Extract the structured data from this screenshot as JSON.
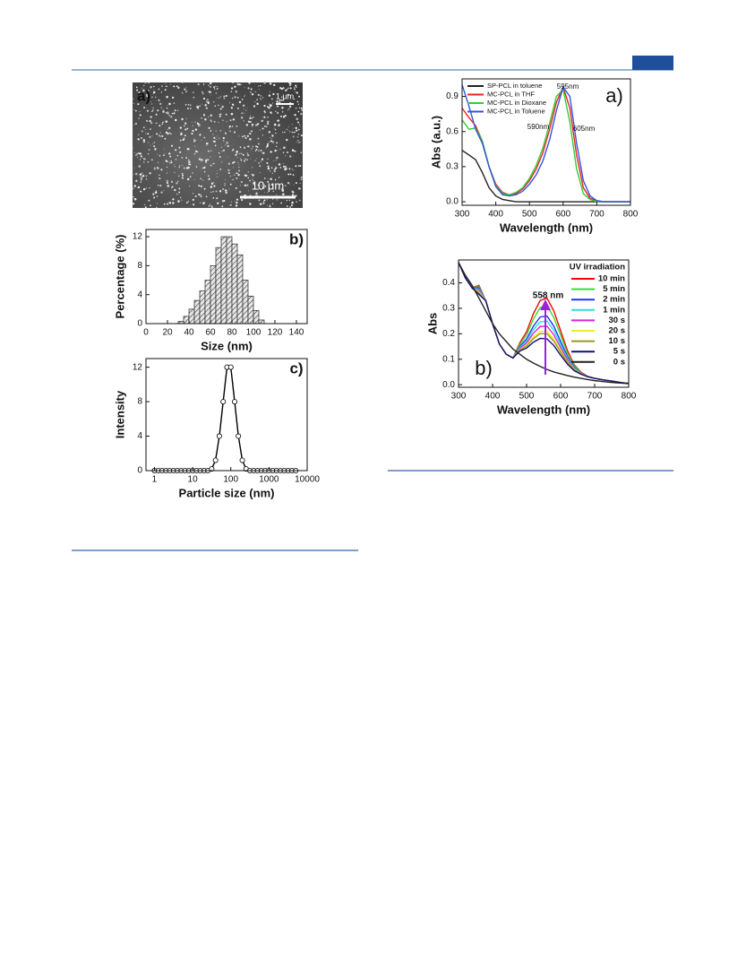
{
  "sem_image": {
    "panel_label": "a)",
    "inset_scale": "1 μm",
    "scale_bar": "10 μm"
  },
  "chart_data": [
    {
      "type": "histogram",
      "panel_label": "b)",
      "xlabel": "Size (nm)",
      "ylabel": "Percentage (%)",
      "bins": [
        30,
        35,
        40,
        45,
        50,
        55,
        60,
        65,
        70,
        75,
        80,
        85,
        90,
        95,
        100,
        105,
        110
      ],
      "values": [
        0.3,
        1,
        2,
        3.2,
        4.5,
        6,
        8,
        10.5,
        12,
        12,
        11,
        9.5,
        6,
        3.8,
        1.8,
        0.5
      ],
      "color": "#dddddd",
      "xlim": [
        0,
        150
      ],
      "xticks": [
        0,
        20,
        40,
        60,
        80,
        100,
        120,
        140
      ],
      "ylim": [
        0,
        13
      ],
      "yticks": [
        0,
        4,
        8,
        12
      ]
    },
    {
      "type": "line",
      "panel_label": "c)",
      "xlabel": "Particle size (nm)",
      "ylabel": "Intensity",
      "log_x": true,
      "marker": "circle",
      "color": "#000000",
      "x": [
        1,
        1.26,
        1.58,
        2,
        2.51,
        3.16,
        3.98,
        5.01,
        6.31,
        7.94,
        10,
        12.6,
        15.8,
        20,
        25.1,
        31.6,
        39.8,
        50.1,
        63.1,
        79.4,
        100,
        126,
        158,
        200,
        251,
        316,
        398,
        501,
        631,
        794,
        1000,
        1260,
        1580,
        2000,
        2510,
        3160,
        3980,
        5010
      ],
      "values": [
        0,
        0,
        0,
        0,
        0,
        0,
        0,
        0,
        0,
        0,
        0,
        0,
        0,
        0,
        0,
        0.2,
        1.2,
        4,
        8,
        12,
        12,
        8,
        4,
        1.2,
        0.2,
        0,
        0,
        0,
        0,
        0,
        0,
        0,
        0,
        0,
        0,
        0,
        0,
        0
      ],
      "xlim": [
        0.6,
        10000
      ],
      "xticks": [
        1,
        10,
        100,
        1000,
        10000
      ],
      "ylim": [
        0,
        13
      ],
      "yticks": [
        0,
        4,
        8,
        12
      ]
    },
    {
      "type": "line",
      "panel_label": "a)",
      "xlabel": "Wavelength  (nm)",
      "ylabel": "Abs (a.u.)",
      "annotations": [
        "595nm",
        "590nm",
        "605nm"
      ],
      "x": [
        300,
        320,
        340,
        360,
        380,
        400,
        420,
        440,
        460,
        480,
        500,
        520,
        540,
        560,
        580,
        600,
        620,
        640,
        660,
        680,
        700,
        720,
        740,
        760,
        780,
        800
      ],
      "series": [
        {
          "name": "SP-PCL in toluene",
          "color": "#222222",
          "values": [
            0.44,
            0.4,
            0.36,
            0.25,
            0.12,
            0.05,
            0.02,
            0.01,
            0,
            0,
            0,
            0,
            0,
            0,
            0,
            0,
            0,
            0,
            0,
            0,
            0,
            0,
            0,
            0,
            0,
            0
          ]
        },
        {
          "name": "MC-PCL in THF",
          "color": "#ee2222",
          "values": [
            0.8,
            0.72,
            0.65,
            0.52,
            0.3,
            0.15,
            0.08,
            0.06,
            0.07,
            0.11,
            0.18,
            0.28,
            0.42,
            0.62,
            0.85,
            0.98,
            0.8,
            0.4,
            0.12,
            0.03,
            0.01,
            0,
            0,
            0,
            0,
            0
          ]
        },
        {
          "name": "MC-PCL in Dioxane",
          "color": "#33cc33",
          "values": [
            0.7,
            0.62,
            0.63,
            0.52,
            0.3,
            0.14,
            0.07,
            0.06,
            0.08,
            0.12,
            0.2,
            0.31,
            0.46,
            0.67,
            0.9,
            0.96,
            0.68,
            0.28,
            0.07,
            0.02,
            0,
            0,
            0,
            0,
            0,
            0
          ]
        },
        {
          "name": "MC-PCL in Toluene",
          "color": "#3355dd",
          "values": [
            1.0,
            0.82,
            0.62,
            0.5,
            0.3,
            0.13,
            0.06,
            0.05,
            0.06,
            0.09,
            0.15,
            0.23,
            0.35,
            0.53,
            0.78,
            0.98,
            0.9,
            0.5,
            0.18,
            0.05,
            0.01,
            0,
            0,
            0,
            0,
            0
          ]
        }
      ],
      "xlim": [
        300,
        800
      ],
      "xticks": [
        300,
        400,
        500,
        600,
        700,
        800
      ],
      "ylim": [
        -0.03,
        1.05
      ],
      "yticks": [
        {
          "value": 0,
          "label": "0.0"
        },
        {
          "value": 0.3,
          "label": "0.3"
        },
        {
          "value": 0.6,
          "label": "0.6"
        },
        {
          "value": 0.9,
          "label": "0.9"
        }
      ]
    },
    {
      "type": "line",
      "panel_label": "b)",
      "xlabel": "Wavelength (nm)",
      "ylabel": "Abs",
      "annotations": [
        "558 nm"
      ],
      "legend_title": "UV irradiation",
      "x": [
        300,
        320,
        340,
        360,
        380,
        400,
        420,
        440,
        460,
        480,
        500,
        520,
        540,
        560,
        580,
        600,
        620,
        640,
        660,
        680,
        700,
        720,
        740,
        760,
        780,
        800
      ],
      "series": [
        {
          "name": "10 min",
          "color": "#ff0000",
          "values": [
            0.48,
            0.42,
            0.38,
            0.39,
            0.33,
            0.24,
            0.16,
            0.12,
            0.105,
            0.164,
            0.208,
            0.279,
            0.331,
            0.34,
            0.29,
            0.212,
            0.134,
            0.078,
            0.049,
            0.033,
            0.025,
            0.02,
            0.016,
            0.012,
            0.008,
            0.005
          ]
        },
        {
          "name": "5 min",
          "color": "#33dd33",
          "values": [
            0.48,
            0.42,
            0.38,
            0.385,
            0.33,
            0.24,
            0.16,
            0.12,
            0.105,
            0.158,
            0.196,
            0.258,
            0.303,
            0.31,
            0.264,
            0.194,
            0.124,
            0.074,
            0.047,
            0.032,
            0.025,
            0.02,
            0.016,
            0.012,
            0.008,
            0.005
          ]
        },
        {
          "name": "2 min",
          "color": "#2233ee",
          "values": [
            0.48,
            0.42,
            0.38,
            0.38,
            0.33,
            0.24,
            0.16,
            0.12,
            0.105,
            0.15,
            0.18,
            0.23,
            0.266,
            0.27,
            0.23,
            0.17,
            0.111,
            0.068,
            0.045,
            0.032,
            0.025,
            0.02,
            0.016,
            0.012,
            0.008,
            0.005
          ]
        },
        {
          "name": "1 min",
          "color": "#33dddd",
          "values": [
            0.48,
            0.42,
            0.38,
            0.375,
            0.33,
            0.24,
            0.16,
            0.12,
            0.105,
            0.146,
            0.172,
            0.216,
            0.247,
            0.25,
            0.213,
            0.158,
            0.104,
            0.065,
            0.044,
            0.032,
            0.025,
            0.02,
            0.016,
            0.012,
            0.008,
            0.005
          ]
        },
        {
          "name": "30 s",
          "color": "#dd22dd",
          "values": [
            0.48,
            0.42,
            0.38,
            0.37,
            0.33,
            0.24,
            0.16,
            0.12,
            0.105,
            0.142,
            0.164,
            0.202,
            0.229,
            0.23,
            0.196,
            0.146,
            0.098,
            0.062,
            0.043,
            0.032,
            0.025,
            0.02,
            0.016,
            0.012,
            0.008,
            0.005
          ]
        },
        {
          "name": "20 s",
          "color": "#eeee22",
          "values": [
            0.48,
            0.42,
            0.38,
            0.365,
            0.33,
            0.24,
            0.16,
            0.12,
            0.105,
            0.138,
            0.156,
            0.188,
            0.21,
            0.21,
            0.179,
            0.134,
            0.091,
            0.06,
            0.042,
            0.031,
            0.025,
            0.02,
            0.016,
            0.012,
            0.008,
            0.005
          ]
        },
        {
          "name": "10 s",
          "color": "#999922",
          "values": [
            0.48,
            0.42,
            0.38,
            0.36,
            0.33,
            0.24,
            0.16,
            0.12,
            0.105,
            0.136,
            0.152,
            0.181,
            0.201,
            0.2,
            0.171,
            0.128,
            0.088,
            0.058,
            0.042,
            0.031,
            0.025,
            0.02,
            0.016,
            0.012,
            0.008,
            0.005
          ]
        },
        {
          "name": "5 s",
          "color": "#111177",
          "values": [
            0.48,
            0.42,
            0.38,
            0.355,
            0.33,
            0.24,
            0.16,
            0.12,
            0.105,
            0.132,
            0.144,
            0.167,
            0.182,
            0.18,
            0.154,
            0.116,
            0.081,
            0.055,
            0.041,
            0.031,
            0.025,
            0.02,
            0.016,
            0.012,
            0.008,
            0.005
          ]
        },
        {
          "name": "0 s",
          "color": "#222222",
          "values": [
            0.48,
            0.43,
            0.39,
            0.34,
            0.29,
            0.24,
            0.2,
            0.17,
            0.14,
            0.12,
            0.1,
            0.085,
            0.072,
            0.06,
            0.05,
            0.043,
            0.036,
            0.03,
            0.025,
            0.02,
            0.016,
            0.013,
            0.01,
            0.008,
            0.006,
            0.004
          ]
        }
      ],
      "xlim": [
        300,
        800
      ],
      "xticks": [
        300,
        400,
        500,
        600,
        700,
        800
      ],
      "ylim": [
        -0.01,
        0.49
      ],
      "yticks": [
        {
          "value": 0,
          "label": "0.0"
        },
        {
          "value": 0.1,
          "label": "0.1"
        },
        {
          "value": 0.2,
          "label": "0.2"
        },
        {
          "value": 0.3,
          "label": "0.3"
        },
        {
          "value": 0.4,
          "label": "0.4"
        }
      ]
    }
  ]
}
